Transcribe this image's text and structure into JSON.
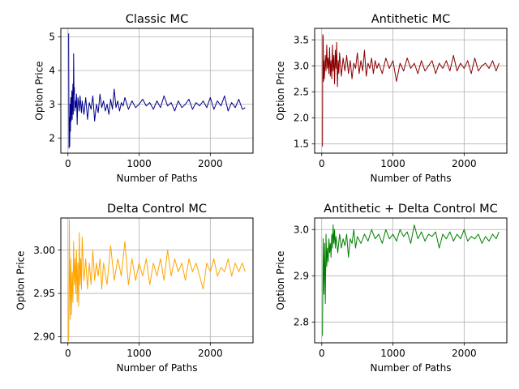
{
  "chart_data": [
    {
      "type": "line",
      "title": "Classic MC",
      "xlabel": "Number of Paths",
      "ylabel": "Option Price",
      "xlim": [
        -100,
        2600
      ],
      "ylim": [
        1.55,
        5.25
      ],
      "xticks": [
        0,
        1000,
        2000
      ],
      "xtick_labels": [
        "0",
        "1000",
        "2000"
      ],
      "yticks": [
        2,
        3,
        4,
        5
      ],
      "ytick_labels": [
        "2",
        "3",
        "4",
        "5"
      ],
      "grid": true,
      "color": "#00008b",
      "x": [
        10,
        15,
        20,
        25,
        30,
        35,
        40,
        45,
        50,
        55,
        60,
        65,
        70,
        75,
        80,
        85,
        90,
        95,
        100,
        110,
        120,
        130,
        140,
        150,
        160,
        170,
        180,
        190,
        200,
        225,
        250,
        275,
        300,
        325,
        350,
        375,
        400,
        425,
        450,
        475,
        500,
        525,
        550,
        575,
        600,
        625,
        650,
        675,
        700,
        725,
        750,
        775,
        800,
        850,
        900,
        950,
        1000,
        1050,
        1100,
        1150,
        1200,
        1250,
        1300,
        1350,
        1400,
        1450,
        1500,
        1550,
        1600,
        1650,
        1700,
        1750,
        1800,
        1850,
        1900,
        1950,
        2000,
        2050,
        2100,
        2150,
        2200,
        2250,
        2300,
        2350,
        2400,
        2450,
        2490
      ],
      "y": [
        5.1,
        1.7,
        2.6,
        1.75,
        3.0,
        2.2,
        3.2,
        2.5,
        2.9,
        3.4,
        2.55,
        3.1,
        3.6,
        2.7,
        4.5,
        3.3,
        3.5,
        2.8,
        3.1,
        2.9,
        3.3,
        2.4,
        3.2,
        3.05,
        2.8,
        3.25,
        3.0,
        2.75,
        3.1,
        2.7,
        3.2,
        2.55,
        3.05,
        2.85,
        3.25,
        2.5,
        3.0,
        2.75,
        3.3,
        2.9,
        3.1,
        2.8,
        3.0,
        2.7,
        3.15,
        2.85,
        3.45,
        2.9,
        3.1,
        2.8,
        3.05,
        2.95,
        3.2,
        2.85,
        3.1,
        2.9,
        3.0,
        3.15,
        2.95,
        3.05,
        2.85,
        3.1,
        2.9,
        3.25,
        2.95,
        3.05,
        2.8,
        3.1,
        2.9,
        3.0,
        3.15,
        2.85,
        3.05,
        2.95,
        3.1,
        2.9,
        3.2,
        2.85,
        3.1,
        2.95,
        3.25,
        2.8,
        3.05,
        2.9,
        3.15,
        2.85,
        2.9
      ]
    },
    {
      "type": "line",
      "title": "Antithetic MC",
      "xlabel": "Number of Paths",
      "ylabel": "Option Price",
      "xlim": [
        -100,
        2600
      ],
      "ylim": [
        1.32,
        3.72
      ],
      "xticks": [
        0,
        1000,
        2000
      ],
      "xtick_labels": [
        "0",
        "1000",
        "2000"
      ],
      "yticks": [
        1.5,
        2.0,
        2.5,
        3.0,
        3.5
      ],
      "ytick_labels": [
        "1.5",
        "2.0",
        "2.5",
        "3.0",
        "3.5"
      ],
      "grid": true,
      "color": "#8b0000",
      "x": [
        10,
        15,
        20,
        25,
        30,
        35,
        40,
        50,
        60,
        70,
        80,
        90,
        100,
        110,
        120,
        130,
        140,
        150,
        160,
        170,
        180,
        190,
        200,
        210,
        220,
        230,
        240,
        250,
        275,
        300,
        325,
        350,
        375,
        400,
        425,
        450,
        475,
        500,
        525,
        550,
        575,
        600,
        625,
        650,
        675,
        700,
        725,
        750,
        775,
        800,
        850,
        900,
        950,
        1000,
        1050,
        1100,
        1150,
        1200,
        1250,
        1300,
        1350,
        1400,
        1450,
        1500,
        1550,
        1600,
        1650,
        1700,
        1750,
        1800,
        1850,
        1900,
        1950,
        2000,
        2050,
        2100,
        2150,
        2200,
        2250,
        2300,
        2350,
        2400,
        2450,
        2490
      ],
      "y": [
        1.45,
        3.6,
        3.55,
        2.7,
        3.1,
        2.75,
        2.85,
        3.2,
        2.9,
        3.4,
        2.95,
        3.15,
        2.85,
        3.35,
        2.8,
        3.1,
        2.75,
        3.4,
        2.9,
        3.2,
        2.65,
        3.3,
        2.95,
        3.45,
        2.6,
        3.1,
        2.85,
        3.25,
        2.8,
        3.15,
        2.9,
        3.2,
        2.85,
        3.1,
        2.75,
        3.05,
        2.95,
        3.25,
        2.85,
        3.1,
        2.9,
        3.3,
        2.8,
        3.05,
        2.95,
        3.15,
        2.85,
        3.1,
        2.95,
        3.05,
        2.85,
        3.15,
        2.95,
        3.1,
        2.7,
        3.05,
        2.9,
        3.15,
        2.95,
        3.05,
        2.85,
        3.1,
        2.9,
        3.0,
        3.1,
        2.85,
        3.05,
        2.95,
        3.1,
        2.9,
        3.2,
        2.9,
        3.05,
        2.95,
        3.1,
        2.85,
        3.15,
        2.9,
        3.0,
        3.05,
        2.95,
        3.1,
        2.9,
        3.05
      ]
    },
    {
      "type": "line",
      "title": "Delta Control MC",
      "xlabel": "Number of Paths",
      "ylabel": "Option Price",
      "xlim": [
        -100,
        2600
      ],
      "ylim": [
        2.893,
        3.037
      ],
      "xticks": [
        0,
        1000,
        2000
      ],
      "xtick_labels": [
        "0",
        "1000",
        "2000"
      ],
      "yticks": [
        2.9,
        2.95,
        3.0
      ],
      "ytick_labels": [
        "2.90",
        "2.95",
        "3.00"
      ],
      "grid": true,
      "color": "#ffa500",
      "x": [
        10,
        20,
        30,
        40,
        50,
        60,
        70,
        80,
        90,
        100,
        110,
        120,
        130,
        140,
        150,
        160,
        170,
        180,
        190,
        200,
        225,
        250,
        275,
        300,
        325,
        350,
        375,
        400,
        425,
        450,
        475,
        500,
        550,
        600,
        650,
        700,
        750,
        800,
        850,
        900,
        950,
        1000,
        1050,
        1100,
        1150,
        1200,
        1250,
        1300,
        1350,
        1400,
        1450,
        1500,
        1550,
        1600,
        1650,
        1700,
        1750,
        1800,
        1850,
        1900,
        1950,
        2000,
        2050,
        2100,
        2150,
        2200,
        2250,
        2300,
        2350,
        2400,
        2450,
        2490
      ],
      "y": [
        2.895,
        3.035,
        2.92,
        2.99,
        2.925,
        2.975,
        2.94,
        3.01,
        2.96,
        2.99,
        2.95,
        3.0,
        2.94,
        2.985,
        2.935,
        3.02,
        2.96,
        2.99,
        2.955,
        3.015,
        2.965,
        2.99,
        2.955,
        2.985,
        2.96,
        3.0,
        2.965,
        2.985,
        2.97,
        2.99,
        2.955,
        2.985,
        2.96,
        3.005,
        2.965,
        2.99,
        2.97,
        3.01,
        2.96,
        2.99,
        2.965,
        2.985,
        2.97,
        2.99,
        2.96,
        2.985,
        2.97,
        2.99,
        2.965,
        3.0,
        2.97,
        2.99,
        2.975,
        2.985,
        2.965,
        2.99,
        2.975,
        2.985,
        2.97,
        2.955,
        2.985,
        2.975,
        2.99,
        2.97,
        2.98,
        2.975,
        2.99,
        2.97,
        2.985,
        2.975,
        2.985,
        2.975
      ]
    },
    {
      "type": "line",
      "title": "Antithetic + Delta Control MC",
      "xlabel": "Number of Paths",
      "ylabel": "Option Price",
      "xlim": [
        -100,
        2600
      ],
      "ylim": [
        2.755,
        3.025
      ],
      "xticks": [
        0,
        1000,
        2000
      ],
      "xtick_labels": [
        "0",
        "1000",
        "2000"
      ],
      "yticks": [
        2.8,
        2.9,
        3.0
      ],
      "ytick_labels": [
        "2.8",
        "2.9",
        "3.0"
      ],
      "grid": true,
      "color": "#008000",
      "x": [
        10,
        20,
        30,
        40,
        50,
        60,
        70,
        80,
        90,
        100,
        110,
        120,
        130,
        140,
        150,
        160,
        170,
        180,
        190,
        200,
        225,
        250,
        275,
        300,
        325,
        350,
        375,
        400,
        425,
        450,
        475,
        500,
        550,
        600,
        650,
        700,
        750,
        800,
        850,
        900,
        950,
        1000,
        1050,
        1100,
        1150,
        1200,
        1250,
        1300,
        1350,
        1400,
        1450,
        1500,
        1550,
        1600,
        1650,
        1700,
        1750,
        1800,
        1850,
        1900,
        1950,
        2000,
        2050,
        2100,
        2150,
        2200,
        2250,
        2300,
        2350,
        2400,
        2450,
        2490
      ],
      "y": [
        2.77,
        2.98,
        2.86,
        2.97,
        2.84,
        2.99,
        2.92,
        2.96,
        2.93,
        2.98,
        2.95,
        2.97,
        2.94,
        2.99,
        2.96,
        3.01,
        2.97,
        3.0,
        2.96,
        2.985,
        2.95,
        2.99,
        2.96,
        2.98,
        2.965,
        2.99,
        2.94,
        2.98,
        2.97,
        3.0,
        2.96,
        2.985,
        2.97,
        2.99,
        2.975,
        3.0,
        2.98,
        2.99,
        2.97,
        3.0,
        2.98,
        2.99,
        2.975,
        3.0,
        2.985,
        2.995,
        2.97,
        3.01,
        2.98,
        2.995,
        2.975,
        2.99,
        2.985,
        2.995,
        2.96,
        2.99,
        2.98,
        2.995,
        2.975,
        2.99,
        2.98,
        3.0,
        2.975,
        2.985,
        2.98,
        2.99,
        2.97,
        2.985,
        2.975,
        2.99,
        2.98,
        2.995
      ]
    }
  ]
}
